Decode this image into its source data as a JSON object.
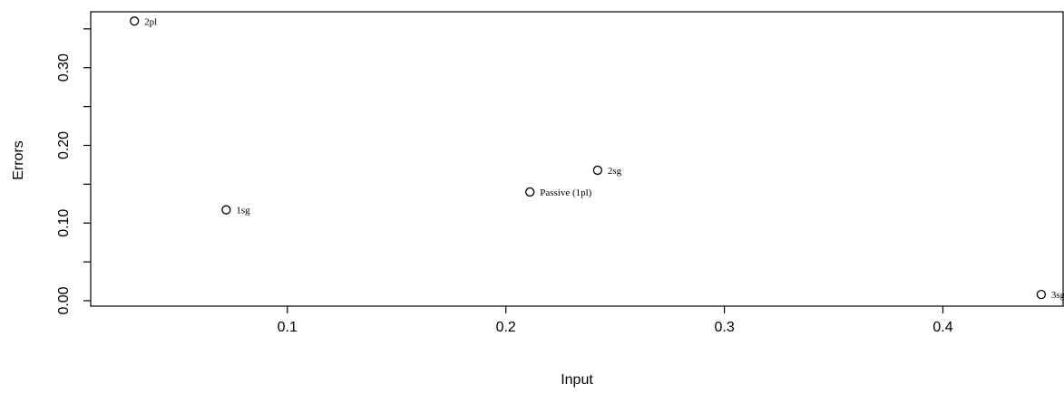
{
  "chart_data": {
    "type": "scatter",
    "xlabel": "Input",
    "ylabel": "Errors",
    "xlim": [
      0.01,
      0.455
    ],
    "ylim": [
      -0.007,
      0.372
    ],
    "x_ticks": [
      0.1,
      0.2,
      0.3,
      0.4
    ],
    "x_tick_labels": [
      "0.1",
      "0.2",
      "0.3",
      "0.4"
    ],
    "y_ticks": [
      0.0,
      0.05,
      0.1,
      0.15,
      0.2,
      0.25,
      0.3,
      0.35
    ],
    "y_tick_labels": [
      "0.00",
      "",
      "0.10",
      "",
      "0.20",
      "",
      "0.30",
      ""
    ],
    "grid": false,
    "points": [
      {
        "label": "2pl",
        "x": 0.03,
        "y": 0.36
      },
      {
        "label": "1sg",
        "x": 0.072,
        "y": 0.117
      },
      {
        "label": "Passive (1pl)",
        "x": 0.211,
        "y": 0.14
      },
      {
        "label": "2sg",
        "x": 0.242,
        "y": 0.168
      },
      {
        "label": "3sg",
        "x": 0.445,
        "y": 0.008
      }
    ]
  }
}
